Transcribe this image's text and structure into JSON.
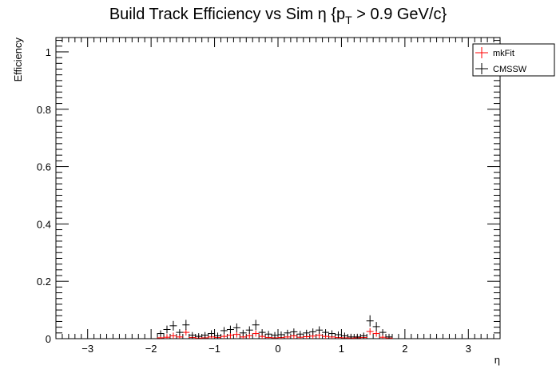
{
  "chart_data": {
    "type": "scatter",
    "title": "Build Track Efficiency vs Sim η {p",
    "title_sub": "T",
    "title_suffix": " > 0.9 GeV/c}",
    "xlabel": "η",
    "ylabel": "Efficiency",
    "xlim": [
      -3.5,
      3.5
    ],
    "ylim": [
      0,
      1.05
    ],
    "x_ticks": [
      -3,
      -2,
      -1,
      0,
      1,
      2,
      3
    ],
    "x_tick_labels": [
      "−3",
      "−2",
      "−1",
      "0",
      "1",
      "2",
      "3"
    ],
    "y_ticks": [
      0,
      0.2,
      0.4,
      0.6,
      0.8,
      1
    ],
    "y_tick_labels": [
      "0",
      "0.2",
      "0.4",
      "0.6",
      "0.8",
      "1"
    ],
    "grid": false,
    "legend_position": "top-right",
    "series": [
      {
        "name": "mkFit",
        "color": "#ff0000",
        "x": [
          -1.85,
          -1.75,
          -1.65,
          -1.55,
          -1.45,
          -1.35,
          -1.25,
          -1.15,
          -1.05,
          -0.95,
          -0.85,
          -0.75,
          -0.65,
          -0.55,
          -0.45,
          -0.35,
          -0.25,
          -0.15,
          -0.05,
          0.05,
          0.15,
          0.25,
          0.35,
          0.45,
          0.55,
          0.65,
          0.75,
          0.85,
          0.95,
          1.05,
          1.15,
          1.25,
          1.35,
          1.45,
          1.55,
          1.65,
          1.75
        ],
        "y": [
          0.003,
          0.005,
          0.01,
          0.006,
          0.022,
          0.004,
          0.002,
          0.003,
          0.006,
          0.004,
          0.008,
          0.012,
          0.015,
          0.006,
          0.01,
          0.018,
          0.008,
          0.004,
          0.003,
          0.004,
          0.006,
          0.01,
          0.005,
          0.007,
          0.009,
          0.012,
          0.008,
          0.006,
          0.004,
          0.003,
          0.002,
          0.003,
          0.004,
          0.025,
          0.018,
          0.005,
          0.002
        ]
      },
      {
        "name": "CMSSW",
        "color": "#000000",
        "x": [
          -1.85,
          -1.75,
          -1.65,
          -1.55,
          -1.45,
          -1.35,
          -1.25,
          -1.15,
          -1.05,
          -0.95,
          -0.85,
          -0.75,
          -0.65,
          -0.55,
          -0.45,
          -0.35,
          -0.25,
          -0.15,
          -0.05,
          0.05,
          0.15,
          0.25,
          0.35,
          0.45,
          0.55,
          0.65,
          0.75,
          0.85,
          0.95,
          1.05,
          1.15,
          1.25,
          1.35,
          1.45,
          1.55,
          1.65,
          1.75
        ],
        "y": [
          0.018,
          0.032,
          0.045,
          0.022,
          0.048,
          0.012,
          0.008,
          0.012,
          0.018,
          0.01,
          0.028,
          0.032,
          0.038,
          0.02,
          0.03,
          0.048,
          0.022,
          0.016,
          0.012,
          0.014,
          0.02,
          0.024,
          0.016,
          0.02,
          0.024,
          0.03,
          0.022,
          0.018,
          0.014,
          0.01,
          0.006,
          0.006,
          0.01,
          0.062,
          0.042,
          0.022,
          0.006
        ]
      }
    ]
  }
}
